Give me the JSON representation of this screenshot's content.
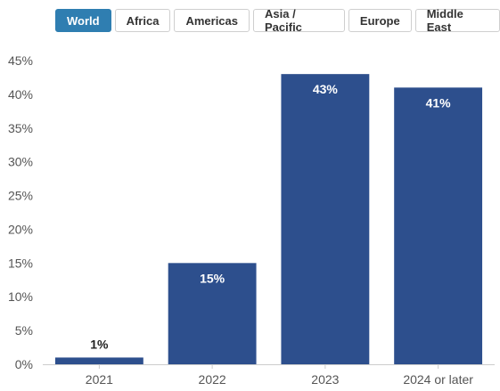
{
  "filters": {
    "tabs": [
      {
        "label": "World",
        "active": true
      },
      {
        "label": "Africa",
        "active": false
      },
      {
        "label": "Americas",
        "active": false
      },
      {
        "label": "Asia / Pacific",
        "active": false
      },
      {
        "label": "Europe",
        "active": false
      },
      {
        "label": "Middle East",
        "active": false
      }
    ],
    "active_color": "#2f7eb1"
  },
  "chart_data": {
    "type": "bar",
    "categories": [
      "2021",
      "2022",
      "2023",
      "2024 or later"
    ],
    "values": [
      1,
      15,
      43,
      41
    ],
    "data_labels": [
      "1%",
      "15%",
      "43%",
      "41%"
    ],
    "y_ticks": [
      "0%",
      "5%",
      "10%",
      "15%",
      "20%",
      "25%",
      "30%",
      "35%",
      "40%",
      "45%"
    ],
    "ylim": [
      0,
      45
    ],
    "title": "",
    "xlabel": "",
    "ylabel": "",
    "grid": false,
    "bar_color": "#2d4f8d",
    "inside_label_color": "#ffffff",
    "outside_label_color": "#222222"
  }
}
